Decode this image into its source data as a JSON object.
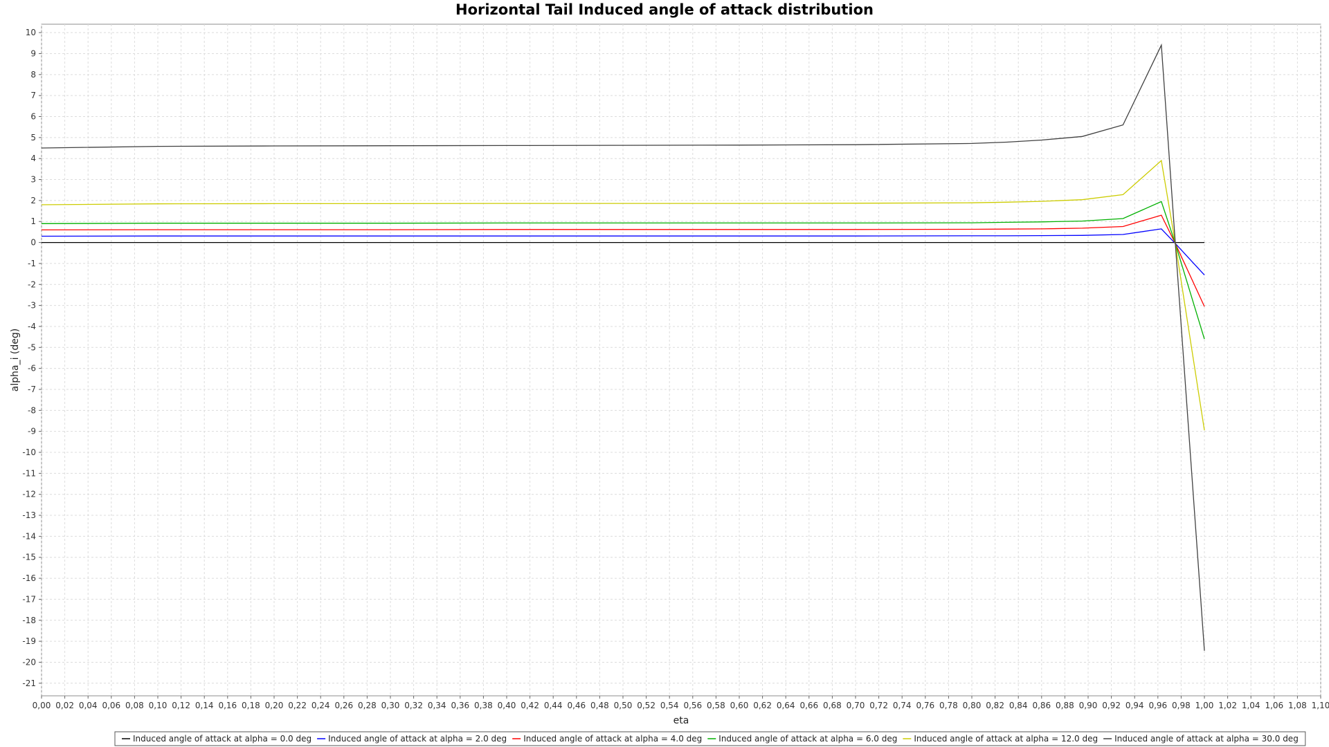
{
  "chart_data": {
    "type": "line",
    "title": "Horizontal Tail Induced angle of attack distribution",
    "xlabel": "eta",
    "ylabel": "alpha_i (deg)",
    "xlim": [
      0.0,
      1.1
    ],
    "ylim": [
      -21.6,
      10.4
    ],
    "x_tick_step": 0.02,
    "y_tick_step": 1,
    "x_decimal_separator": ",",
    "grid": true,
    "legend_position": "bottom",
    "x": [
      0.0,
      0.1,
      0.2,
      0.3,
      0.4,
      0.5,
      0.6,
      0.7,
      0.8,
      0.83,
      0.86,
      0.895,
      0.93,
      0.963,
      0.975,
      1.0
    ],
    "series": [
      {
        "name": "Induced angle of attack at alpha = 0.0 deg",
        "color": "#000000",
        "values": [
          0,
          0,
          0,
          0,
          0,
          0,
          0,
          0,
          0,
          0,
          0,
          0,
          0,
          0,
          0,
          0
        ]
      },
      {
        "name": "Induced angle of attack at alpha = 2.0 deg",
        "color": "#0000ff",
        "values": [
          0.3,
          0.31,
          0.31,
          0.31,
          0.31,
          0.31,
          0.31,
          0.31,
          0.32,
          0.32,
          0.33,
          0.34,
          0.38,
          0.65,
          -0.05,
          -1.55
        ]
      },
      {
        "name": "Induced angle of attack at alpha = 4.0 deg",
        "color": "#ff0000",
        "values": [
          0.6,
          0.61,
          0.61,
          0.61,
          0.62,
          0.62,
          0.62,
          0.62,
          0.63,
          0.64,
          0.65,
          0.68,
          0.76,
          1.3,
          -0.05,
          -3.05
        ]
      },
      {
        "name": "Induced angle of attack at alpha = 6.0 deg",
        "color": "#00b000",
        "values": [
          0.9,
          0.92,
          0.92,
          0.92,
          0.93,
          0.93,
          0.93,
          0.93,
          0.94,
          0.96,
          0.98,
          1.02,
          1.14,
          1.95,
          -0.05,
          -4.6
        ]
      },
      {
        "name": "Induced angle of attack at alpha = 12.0 deg",
        "color": "#cccc00",
        "values": [
          1.8,
          1.84,
          1.85,
          1.85,
          1.86,
          1.86,
          1.86,
          1.87,
          1.89,
          1.92,
          1.96,
          2.04,
          2.28,
          3.9,
          -0.05,
          -8.95
        ]
      },
      {
        "name": "Induced angle of attack at alpha = 30.0 deg",
        "color": "#404040",
        "values": [
          4.5,
          4.58,
          4.6,
          4.61,
          4.62,
          4.63,
          4.64,
          4.66,
          4.72,
          4.78,
          4.88,
          5.05,
          5.6,
          9.4,
          -0.05,
          -19.45
        ]
      }
    ]
  }
}
